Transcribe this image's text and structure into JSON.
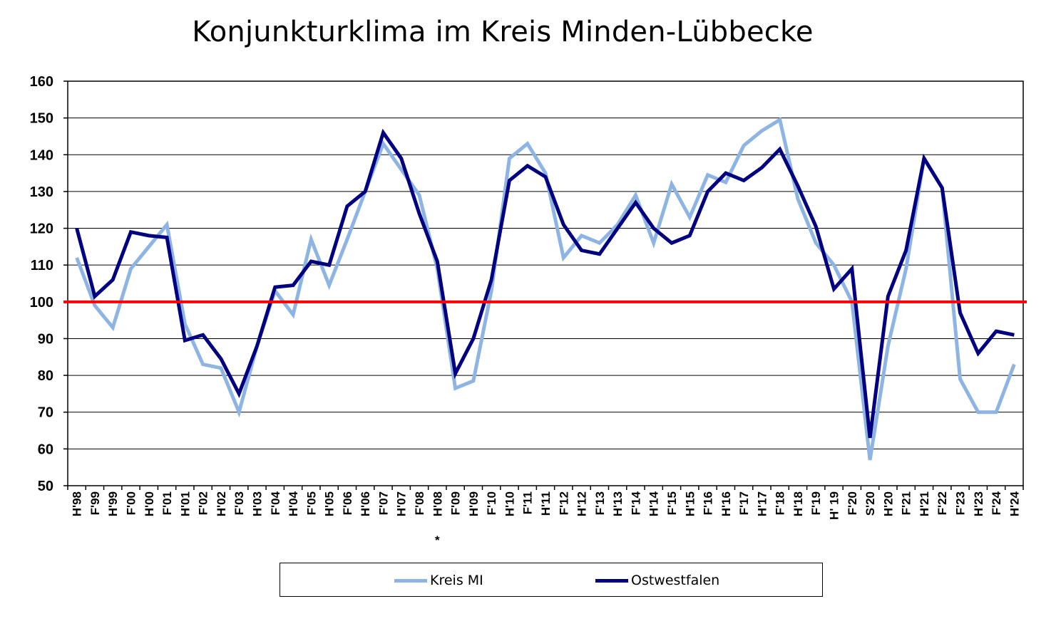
{
  "chart_data": {
    "type": "line",
    "title": "Konjunkturklima im Kreis Minden-Lübbecke",
    "xlabel": "",
    "ylabel": "",
    "ylim": [
      50,
      160
    ],
    "yticks": [
      50,
      60,
      70,
      80,
      90,
      100,
      110,
      120,
      130,
      140,
      150,
      160
    ],
    "reference_line": {
      "y": 100,
      "color": "#ff0000"
    },
    "grid": true,
    "legend_position": "bottom",
    "categories": [
      "H'98",
      "F'99",
      "H'99",
      "F'00",
      "H'00",
      "F'01",
      "H'01",
      "F'02",
      "H'02",
      "F'03",
      "H'03",
      "F'04",
      "H'04",
      "F'05",
      "H'05",
      "F'06",
      "H'06",
      "F'07",
      "H'07",
      "F'08",
      "H'08",
      "F'09",
      "H'09",
      "F'10",
      "H'10",
      "F'11",
      "H'11",
      "F'12",
      "H'12",
      "F'13",
      "H'13",
      "F'14",
      "H'14",
      "F'15",
      "H'15",
      "F'16",
      "H'16",
      "F'17",
      "H'17",
      "F'18",
      "H'18",
      "F'19",
      "H' 19",
      "F'20",
      "S'20",
      "H'20",
      "F'21",
      "H'21",
      "F'22",
      "F'23",
      "H'23",
      "F'24",
      "H'24"
    ],
    "annotation": {
      "text": "*",
      "category": "H'08"
    },
    "series": [
      {
        "name": "Kreis MI",
        "color": "#8db4e2",
        "values": [
          112,
          99,
          93,
          109,
          115,
          121,
          94,
          83,
          82,
          70,
          88,
          103,
          96.5,
          117,
          104.5,
          117,
          130,
          143,
          136,
          129,
          109,
          76.5,
          78.5,
          103,
          139,
          143,
          135,
          112,
          118,
          116,
          121,
          129,
          116,
          132,
          123,
          134.5,
          132.5,
          142.5,
          146.5,
          149.5,
          128,
          116,
          110,
          100,
          57,
          88,
          109,
          139,
          131,
          79,
          70,
          70,
          83
        ]
      },
      {
        "name": "Ostwestfalen",
        "color": "#000080",
        "values": [
          120,
          101.5,
          106,
          119,
          118,
          117.5,
          89.5,
          91,
          84.5,
          75,
          88,
          104,
          104.5,
          111,
          110,
          126,
          130,
          146,
          139,
          124,
          111,
          80.5,
          90,
          106,
          133,
          137,
          134,
          121,
          114,
          113,
          120,
          127,
          120,
          116,
          118,
          130,
          135,
          133,
          136.5,
          141.5,
          131.5,
          120.5,
          103.5,
          109,
          63,
          101.5,
          114,
          139,
          131,
          97,
          86,
          92,
          91
        ]
      }
    ]
  }
}
